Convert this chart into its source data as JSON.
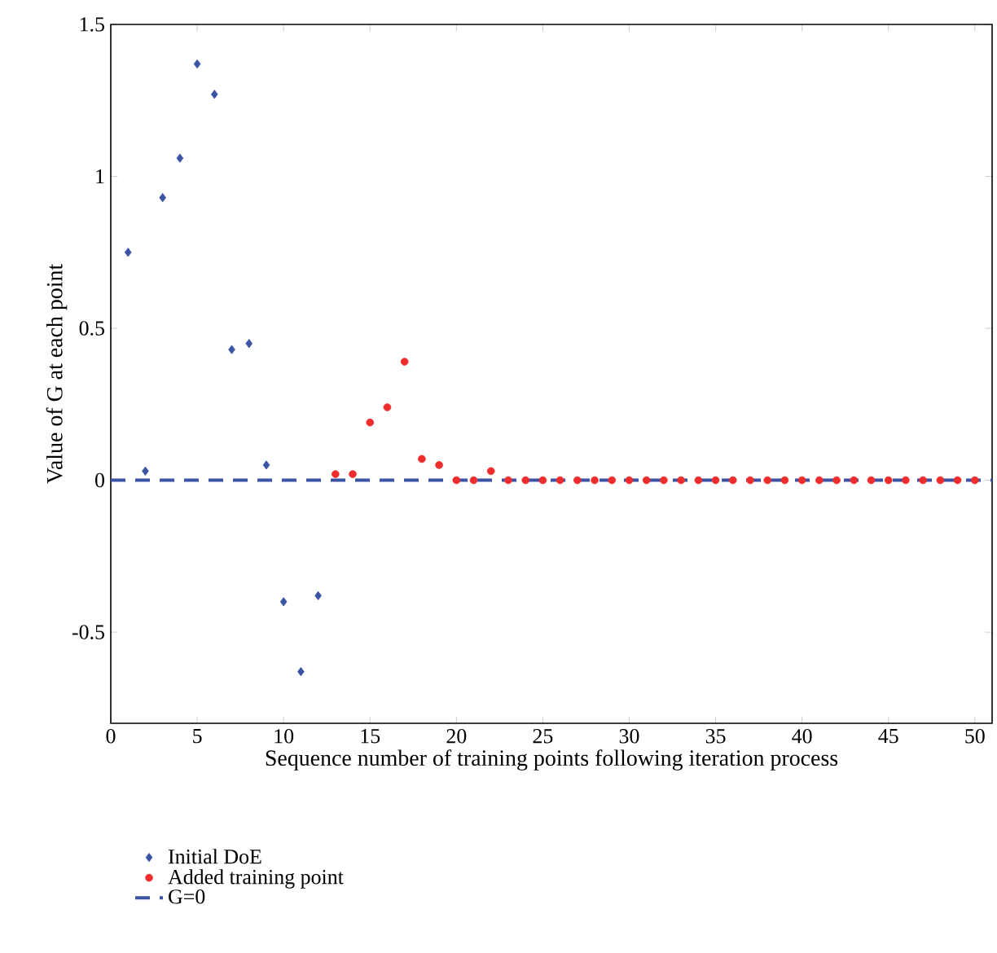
{
  "chart_data": {
    "type": "scatter",
    "xlabel": "Sequence number of training points following iteration process",
    "ylabel": "Value of G at each point",
    "xlim": [
      0,
      51
    ],
    "ylim": [
      -0.8,
      1.5
    ],
    "xticks": [
      0,
      5,
      10,
      15,
      20,
      25,
      30,
      35,
      40,
      45,
      50
    ],
    "yticks": [
      -0.5,
      0,
      0.5,
      1,
      1.5
    ],
    "grid": false,
    "legend": "bottom left",
    "series": [
      {
        "name": "Initial DoE",
        "color": "#3a53a4",
        "marker": "diamond",
        "x": [
          1,
          2,
          3,
          4,
          5,
          6,
          7,
          8,
          9,
          10,
          11,
          12
        ],
        "values": [
          0.75,
          0.03,
          0.93,
          1.06,
          1.37,
          1.27,
          0.43,
          0.45,
          0.05,
          -0.4,
          -0.63,
          -0.38
        ]
      },
      {
        "name": "Added training point",
        "color": "#ee2c2c",
        "marker": "circle",
        "x": [
          13,
          14,
          15,
          16,
          17,
          18,
          19,
          20,
          21,
          22,
          23,
          24,
          25,
          26,
          27,
          28,
          29,
          30,
          31,
          32,
          33,
          34,
          35,
          36,
          37,
          38,
          39,
          40,
          41,
          42,
          43,
          44,
          45,
          46,
          47,
          48,
          49,
          50
        ],
        "values": [
          0.02,
          0.02,
          0.19,
          0.24,
          0.39,
          0.07,
          0.05,
          0,
          0,
          0.03,
          0,
          0,
          0,
          0,
          0,
          0,
          0,
          0,
          0,
          0,
          0,
          0,
          0,
          0,
          0,
          0,
          0,
          0,
          0,
          0,
          0,
          0,
          0,
          0,
          0,
          0,
          0,
          0
        ]
      }
    ],
    "ref_lines": [
      {
        "axis": "y",
        "value": 0,
        "label": "G=0",
        "color": "#3a53a4",
        "line_style": "dashed"
      }
    ]
  }
}
